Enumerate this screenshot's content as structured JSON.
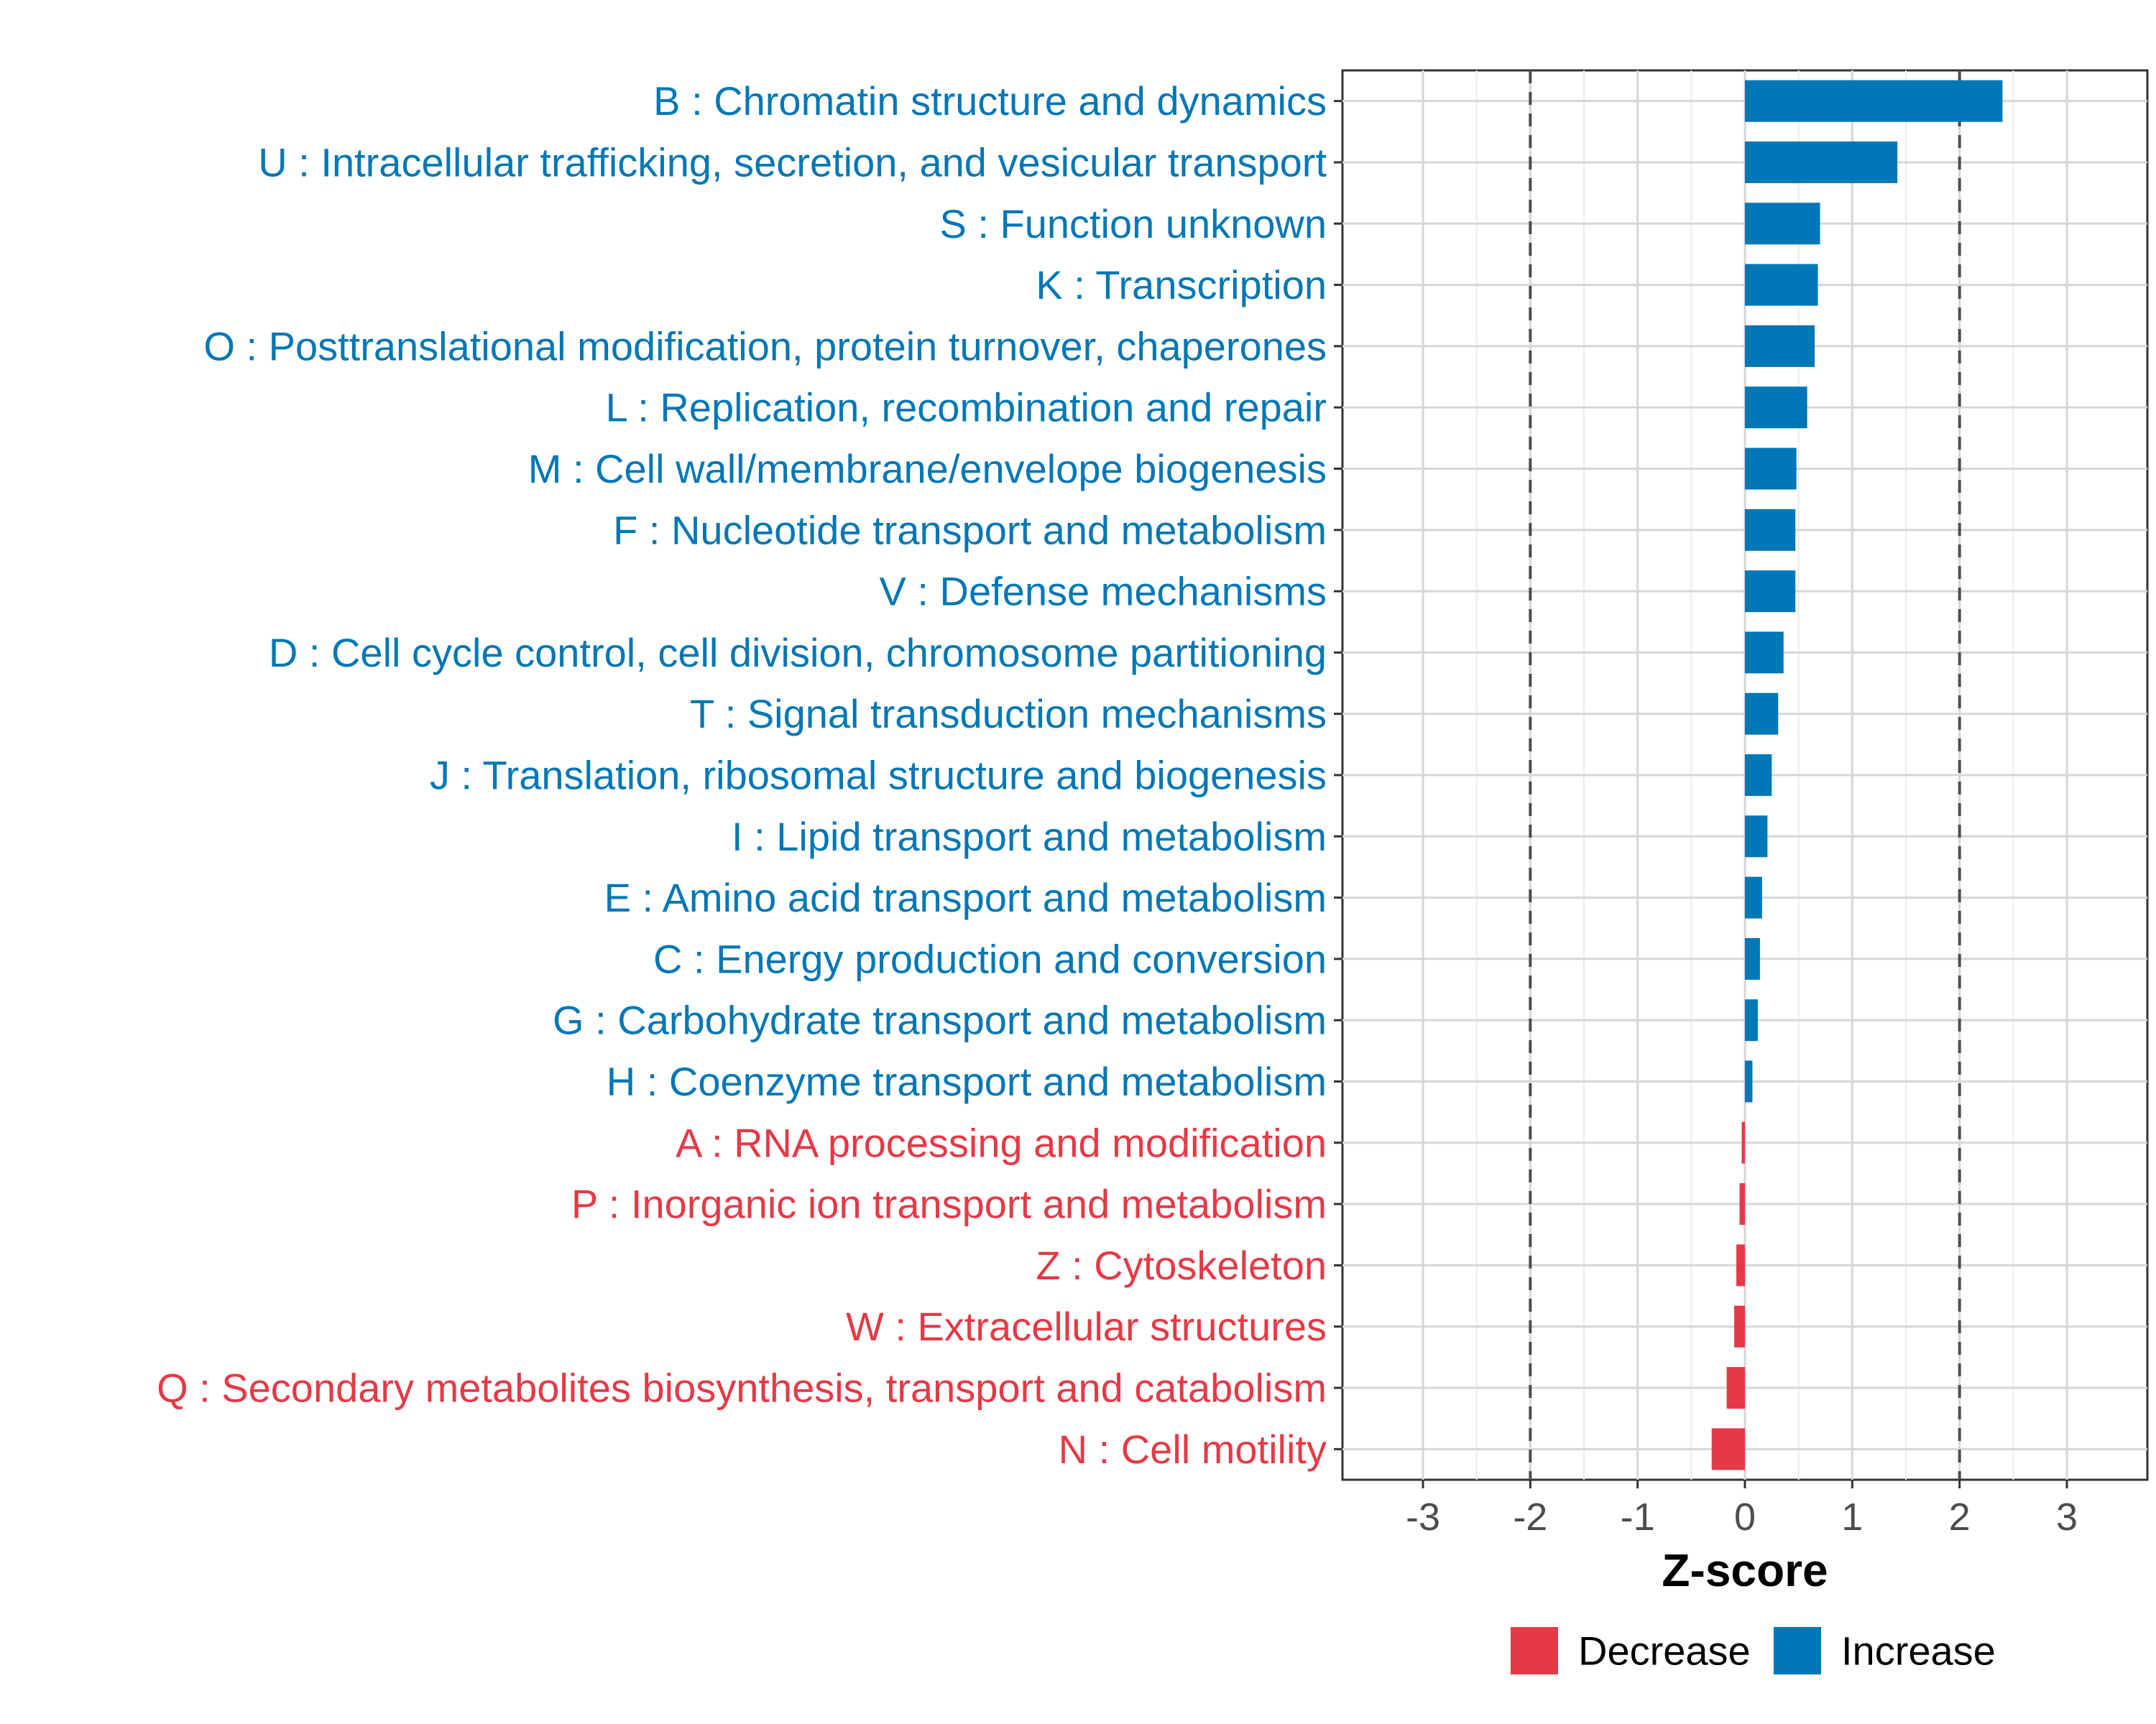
{
  "chart_data": {
    "type": "bar",
    "orientation": "horizontal",
    "title": "",
    "xlabel": "Z-score",
    "ylabel": "",
    "xlim": [
      -3.75,
      3.75
    ],
    "xticks": [
      -3,
      -2,
      -1,
      0,
      1,
      2,
      3
    ],
    "threshold_lines": [
      -2,
      2
    ],
    "grid": true,
    "legend_position": "bottom",
    "categories": [
      "B : Chromatin structure and dynamics",
      "U : Intracellular trafficking, secretion, and vesicular transport",
      "S : Function unknown",
      "K : Transcription",
      "O : Posttranslational modification, protein turnover, chaperones",
      "L : Replication, recombination and repair",
      "M : Cell wall/membrane/envelope biogenesis",
      "F : Nucleotide transport and metabolism",
      "V : Defense mechanisms",
      "D : Cell cycle control, cell division, chromosome partitioning",
      "T : Signal transduction mechanisms",
      "J : Translation, ribosomal structure and biogenesis",
      "I : Lipid transport and metabolism",
      "E : Amino acid transport and metabolism",
      "C : Energy production and conversion",
      "G : Carbohydrate transport and metabolism",
      "H : Coenzyme transport and metabolism",
      "A : RNA processing and modification",
      "P : Inorganic ion transport and metabolism",
      "Z : Cytoskeleton",
      "W : Extracellular structures",
      "Q : Secondary metabolites biosynthesis, transport and catabolism",
      "N : Cell motility"
    ],
    "values": [
      2.4,
      1.42,
      0.7,
      0.68,
      0.65,
      0.58,
      0.48,
      0.47,
      0.47,
      0.36,
      0.31,
      0.25,
      0.21,
      0.16,
      0.14,
      0.12,
      0.07,
      -0.03,
      -0.05,
      -0.08,
      -0.1,
      -0.17,
      -0.31
    ],
    "groups": [
      "Increase",
      "Increase",
      "Increase",
      "Increase",
      "Increase",
      "Increase",
      "Increase",
      "Increase",
      "Increase",
      "Increase",
      "Increase",
      "Increase",
      "Increase",
      "Increase",
      "Increase",
      "Increase",
      "Increase",
      "Decrease",
      "Decrease",
      "Decrease",
      "Decrease",
      "Decrease",
      "Decrease"
    ],
    "legend": [
      {
        "name": "Decrease",
        "color": "#e63946"
      },
      {
        "name": "Increase",
        "color": "#0077b6"
      }
    ]
  }
}
